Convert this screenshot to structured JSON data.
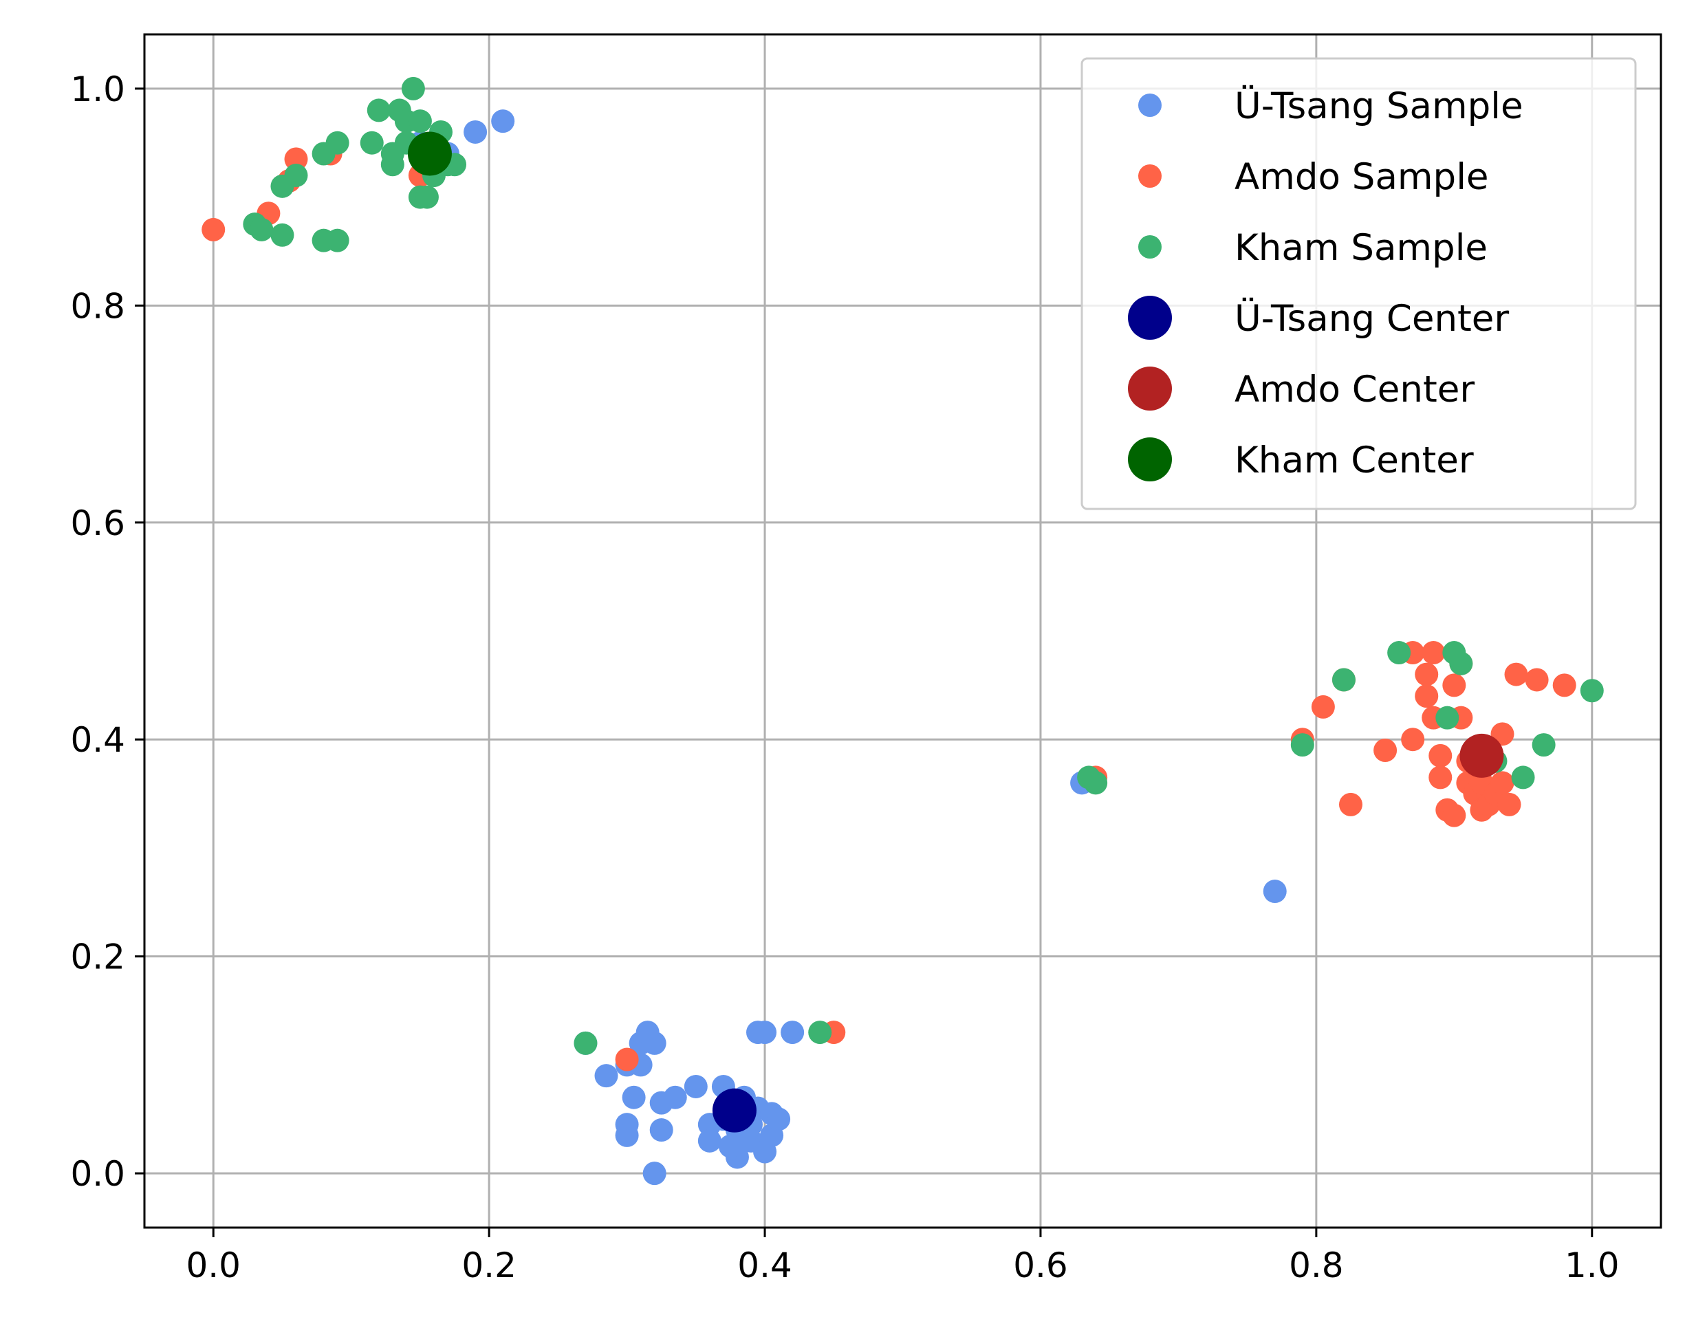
{
  "chart_data": {
    "type": "scatter",
    "title": "",
    "xlabel": "",
    "ylabel": "",
    "xlim": [
      -0.05,
      1.05
    ],
    "ylim": [
      -0.05,
      1.05
    ],
    "xticks": [
      0.0,
      0.2,
      0.4,
      0.6,
      0.8,
      1.0
    ],
    "yticks": [
      0.0,
      0.2,
      0.4,
      0.6,
      0.8,
      1.0
    ],
    "xtick_labels": [
      "0.0",
      "0.2",
      "0.4",
      "0.6",
      "0.8",
      "1.0"
    ],
    "ytick_labels": [
      "0.0",
      "0.2",
      "0.4",
      "0.6",
      "0.8",
      "1.0"
    ],
    "grid": true,
    "legend_position": "top-right",
    "series": [
      {
        "name": "Ü-Tsang Sample",
        "kind": "sample",
        "color": "#6495ED",
        "points": [
          [
            0.19,
            0.96
          ],
          [
            0.21,
            0.97
          ],
          [
            0.15,
            0.95
          ],
          [
            0.16,
            0.93
          ],
          [
            0.17,
            0.94
          ],
          [
            0.27,
            0.12
          ],
          [
            0.285,
            0.09
          ],
          [
            0.3,
            0.1
          ],
          [
            0.31,
            0.12
          ],
          [
            0.315,
            0.13
          ],
          [
            0.32,
            0.12
          ],
          [
            0.31,
            0.1
          ],
          [
            0.305,
            0.07
          ],
          [
            0.3,
            0.045
          ],
          [
            0.3,
            0.035
          ],
          [
            0.325,
            0.065
          ],
          [
            0.325,
            0.04
          ],
          [
            0.335,
            0.07
          ],
          [
            0.35,
            0.08
          ],
          [
            0.36,
            0.045
          ],
          [
            0.36,
            0.03
          ],
          [
            0.37,
            0.08
          ],
          [
            0.37,
            0.05
          ],
          [
            0.38,
            0.04
          ],
          [
            0.38,
            0.015
          ],
          [
            0.385,
            0.07
          ],
          [
            0.39,
            0.03
          ],
          [
            0.395,
            0.06
          ],
          [
            0.4,
            0.02
          ],
          [
            0.405,
            0.035
          ],
          [
            0.405,
            0.055
          ],
          [
            0.41,
            0.05
          ],
          [
            0.395,
            0.13
          ],
          [
            0.4,
            0.13
          ],
          [
            0.42,
            0.13
          ],
          [
            0.32,
            0.0
          ],
          [
            0.39,
            0.045
          ],
          [
            0.375,
            0.025
          ],
          [
            0.63,
            0.36
          ],
          [
            0.77,
            0.26
          ]
        ]
      },
      {
        "name": "Amdo Sample",
        "kind": "sample",
        "color": "#FF6347",
        "points": [
          [
            0.0,
            0.87
          ],
          [
            0.04,
            0.885
          ],
          [
            0.06,
            0.935
          ],
          [
            0.085,
            0.94
          ],
          [
            0.055,
            0.915
          ],
          [
            0.15,
            0.92
          ],
          [
            0.3,
            0.105
          ],
          [
            0.45,
            0.13
          ],
          [
            0.64,
            0.365
          ],
          [
            0.79,
            0.4
          ],
          [
            0.805,
            0.43
          ],
          [
            0.82,
            0.455
          ],
          [
            0.825,
            0.34
          ],
          [
            0.85,
            0.39
          ],
          [
            0.87,
            0.4
          ],
          [
            0.87,
            0.48
          ],
          [
            0.88,
            0.44
          ],
          [
            0.88,
            0.46
          ],
          [
            0.885,
            0.42
          ],
          [
            0.885,
            0.48
          ],
          [
            0.89,
            0.385
          ],
          [
            0.89,
            0.365
          ],
          [
            0.895,
            0.335
          ],
          [
            0.9,
            0.33
          ],
          [
            0.9,
            0.45
          ],
          [
            0.905,
            0.42
          ],
          [
            0.905,
            0.47
          ],
          [
            0.91,
            0.36
          ],
          [
            0.91,
            0.38
          ],
          [
            0.915,
            0.35
          ],
          [
            0.92,
            0.335
          ],
          [
            0.92,
            0.36
          ],
          [
            0.925,
            0.34
          ],
          [
            0.93,
            0.35
          ],
          [
            0.935,
            0.36
          ],
          [
            0.935,
            0.405
          ],
          [
            0.94,
            0.34
          ],
          [
            0.945,
            0.46
          ],
          [
            0.96,
            0.455
          ],
          [
            0.98,
            0.45
          ]
        ]
      },
      {
        "name": "Kham Sample",
        "kind": "sample",
        "color": "#3CB371",
        "points": [
          [
            0.03,
            0.875
          ],
          [
            0.035,
            0.87
          ],
          [
            0.05,
            0.865
          ],
          [
            0.05,
            0.91
          ],
          [
            0.06,
            0.92
          ],
          [
            0.08,
            0.86
          ],
          [
            0.09,
            0.86
          ],
          [
            0.08,
            0.94
          ],
          [
            0.09,
            0.95
          ],
          [
            0.115,
            0.95
          ],
          [
            0.12,
            0.98
          ],
          [
            0.13,
            0.93
          ],
          [
            0.135,
            0.98
          ],
          [
            0.14,
            0.97
          ],
          [
            0.145,
            1.0
          ],
          [
            0.15,
            0.97
          ],
          [
            0.15,
            0.9
          ],
          [
            0.155,
            0.9
          ],
          [
            0.16,
            0.92
          ],
          [
            0.165,
            0.96
          ],
          [
            0.17,
            0.93
          ],
          [
            0.175,
            0.93
          ],
          [
            0.13,
            0.94
          ],
          [
            0.14,
            0.95
          ],
          [
            0.27,
            0.12
          ],
          [
            0.44,
            0.13
          ],
          [
            0.635,
            0.365
          ],
          [
            0.64,
            0.36
          ],
          [
            0.79,
            0.395
          ],
          [
            0.82,
            0.455
          ],
          [
            0.86,
            0.48
          ],
          [
            0.895,
            0.42
          ],
          [
            0.9,
            0.48
          ],
          [
            0.905,
            0.47
          ],
          [
            0.93,
            0.38
          ],
          [
            0.95,
            0.365
          ],
          [
            0.965,
            0.395
          ],
          [
            1.0,
            0.445
          ]
        ]
      },
      {
        "name": "Ü-Tsang Center",
        "kind": "center",
        "color": "#00008B",
        "points": [
          [
            0.378,
            0.058
          ]
        ]
      },
      {
        "name": "Amdo Center",
        "kind": "center",
        "color": "#B22222",
        "points": [
          [
            0.92,
            0.385
          ]
        ]
      },
      {
        "name": "Kham Center",
        "kind": "center",
        "color": "#006400",
        "points": [
          [
            0.157,
            0.94
          ]
        ]
      }
    ]
  }
}
